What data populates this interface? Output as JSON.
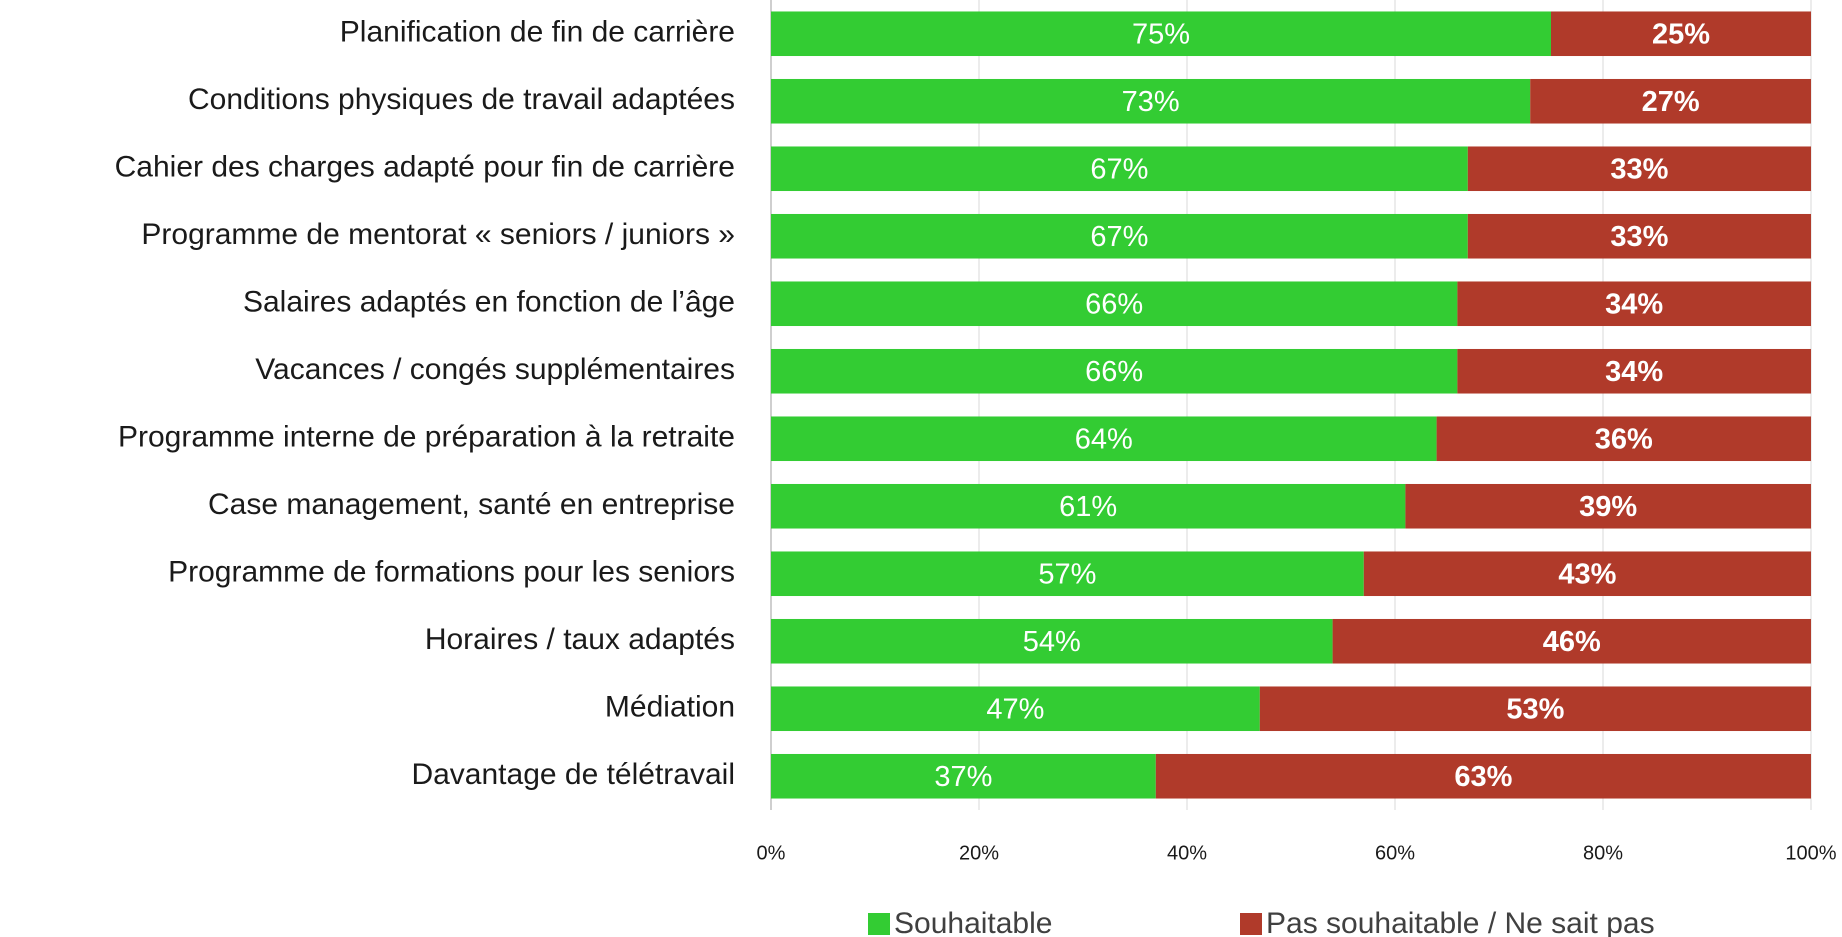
{
  "chart_data": {
    "type": "stacked_barh",
    "categories": [
      "Planification de fin de carrière",
      "Conditions physiques de travail adaptées",
      "Cahier des charges adapté pour fin de carrière",
      "Programme de mentorat « seniors / juniors »",
      "Salaires adaptés en fonction de l’âge",
      "Vacances / congés supplémentaires",
      "Programme interne de préparation à la retraite",
      "Case management, santé en entreprise",
      "Programme de formations pour les seniors",
      "Horaires / taux adaptés",
      "Médiation",
      "Davantage de télétravail"
    ],
    "series": [
      {
        "name": "Souhaitable",
        "color": "#33cc33",
        "values": [
          75,
          73,
          67,
          67,
          66,
          66,
          64,
          61,
          57,
          54,
          47,
          37
        ],
        "value_labels": [
          "75%",
          "73%",
          "67%",
          "67%",
          "66%",
          "66%",
          "64%",
          "61%",
          "57%",
          "54%",
          "47%",
          "37%"
        ]
      },
      {
        "name": "Pas souhaitable / Ne sait pas",
        "color": "#b03a2a",
        "values": [
          25,
          27,
          33,
          33,
          34,
          34,
          36,
          39,
          43,
          46,
          53,
          63
        ],
        "value_labels": [
          "25%",
          "27%",
          "33%",
          "33%",
          "34%",
          "34%",
          "36%",
          "39%",
          "43%",
          "46%",
          "53%",
          "63%"
        ]
      }
    ],
    "xlim": [
      0,
      100
    ],
    "xticks": [
      {
        "value": 0,
        "label": "0%"
      },
      {
        "value": 20,
        "label": "20%"
      },
      {
        "value": 40,
        "label": "40%"
      },
      {
        "value": 60,
        "label": "60%"
      },
      {
        "value": 80,
        "label": "80%"
      },
      {
        "value": 100,
        "label": "100%"
      }
    ],
    "grid": true,
    "legend": "bottom"
  }
}
